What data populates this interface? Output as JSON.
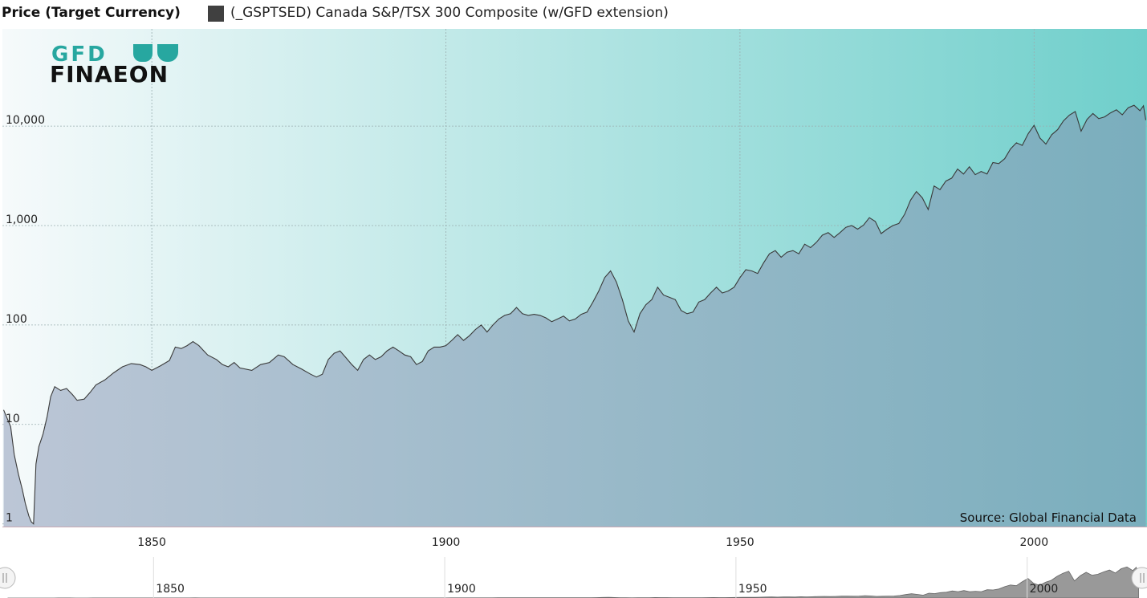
{
  "legend": {
    "title": "Price (Target Currency)",
    "series_name": "(_GSPTSED) Canada S&P/TSX 300 Composite (w/GFD extension)",
    "series_color": "#404040"
  },
  "logo": {
    "line1": "GFD",
    "line2": "FINAEON",
    "accent_color": "#27a7a0",
    "text_color": "#111111"
  },
  "source_label": "Source: Global Financial Data",
  "colors": {
    "plot_bg_left": "#f6fafb",
    "plot_bg_right": "#6fcfcb",
    "fill_left": "#bcc6d6",
    "fill_right": "#7aaebd",
    "line": "#3a3a3a"
  },
  "chart_data": {
    "type": "area",
    "title": "",
    "xlabel": "",
    "ylabel": "",
    "y_scale": "log",
    "y_ticks": [
      {
        "value": 1,
        "label": "1"
      },
      {
        "value": 10,
        "label": "10"
      },
      {
        "value": 100,
        "label": "100"
      },
      {
        "value": 1000,
        "label": "1,000"
      },
      {
        "value": 10000,
        "label": "10,000"
      }
    ],
    "x_ticks": [
      {
        "value": 1850,
        "label": "1850"
      },
      {
        "value": 1900,
        "label": "1900"
      },
      {
        "value": 1950,
        "label": "1950"
      },
      {
        "value": 2000,
        "label": "2000"
      }
    ],
    "xlim": [
      1824.6,
      2019.2
    ],
    "ylim": [
      0.94,
      95000
    ],
    "grid": true,
    "legend_position": "top-left",
    "series": [
      {
        "name": "(_GSPTSED) Canada S&P/TSX 300 Composite (w/GFD extension)",
        "points": [
          [
            1824.8,
            14
          ],
          [
            1826.0,
            9.5
          ],
          [
            1826.6,
            5
          ],
          [
            1827.3,
            3.2
          ],
          [
            1828.0,
            2.2
          ],
          [
            1828.5,
            1.6
          ],
          [
            1829.1,
            1.2
          ],
          [
            1829.5,
            1.05
          ],
          [
            1829.9,
            1.0
          ],
          [
            1830.3,
            4
          ],
          [
            1830.8,
            6
          ],
          [
            1831.5,
            8
          ],
          [
            1832.2,
            12
          ],
          [
            1832.8,
            19
          ],
          [
            1833.5,
            24
          ],
          [
            1834.5,
            22
          ],
          [
            1835.5,
            23
          ],
          [
            1836.5,
            20
          ],
          [
            1837.3,
            17.5
          ],
          [
            1838.5,
            18
          ],
          [
            1839.5,
            21
          ],
          [
            1840.5,
            25
          ],
          [
            1842,
            28
          ],
          [
            1843.5,
            33
          ],
          [
            1845,
            38
          ],
          [
            1846.5,
            41
          ],
          [
            1848,
            40
          ],
          [
            1849,
            38
          ],
          [
            1850,
            35
          ],
          [
            1851.5,
            39
          ],
          [
            1853,
            44
          ],
          [
            1854,
            60
          ],
          [
            1855,
            58
          ],
          [
            1856,
            62
          ],
          [
            1857,
            68
          ],
          [
            1858,
            62
          ],
          [
            1859.5,
            50
          ],
          [
            1861,
            45
          ],
          [
            1862,
            40
          ],
          [
            1863,
            38
          ],
          [
            1864,
            42
          ],
          [
            1865,
            37
          ],
          [
            1867,
            35
          ],
          [
            1868.5,
            40
          ],
          [
            1870,
            42
          ],
          [
            1871.5,
            50
          ],
          [
            1872.5,
            48
          ],
          [
            1874,
            40
          ],
          [
            1875.5,
            36
          ],
          [
            1877,
            32
          ],
          [
            1878,
            30
          ],
          [
            1879,
            32
          ],
          [
            1880,
            45
          ],
          [
            1881,
            52
          ],
          [
            1882,
            55
          ],
          [
            1883,
            47
          ],
          [
            1884,
            40
          ],
          [
            1885,
            35
          ],
          [
            1886,
            45
          ],
          [
            1887,
            50
          ],
          [
            1888,
            45
          ],
          [
            1889,
            48
          ],
          [
            1890,
            55
          ],
          [
            1891,
            60
          ],
          [
            1892,
            55
          ],
          [
            1893,
            50
          ],
          [
            1894,
            48
          ],
          [
            1895,
            40
          ],
          [
            1896,
            43
          ],
          [
            1897,
            55
          ],
          [
            1898,
            60
          ],
          [
            1899,
            60
          ],
          [
            1900,
            62
          ],
          [
            1901,
            70
          ],
          [
            1902,
            80
          ],
          [
            1903,
            70
          ],
          [
            1904,
            78
          ],
          [
            1905,
            90
          ],
          [
            1906,
            100
          ],
          [
            1907,
            85
          ],
          [
            1908,
            100
          ],
          [
            1909,
            115
          ],
          [
            1910,
            125
          ],
          [
            1911,
            130
          ],
          [
            1912,
            150
          ],
          [
            1913,
            130
          ],
          [
            1914,
            125
          ],
          [
            1915,
            128
          ],
          [
            1916,
            125
          ],
          [
            1917,
            118
          ],
          [
            1918,
            108
          ],
          [
            1919,
            115
          ],
          [
            1920,
            123
          ],
          [
            1921,
            110
          ],
          [
            1922,
            115
          ],
          [
            1923,
            128
          ],
          [
            1924,
            135
          ],
          [
            1925,
            170
          ],
          [
            1926,
            220
          ],
          [
            1927,
            300
          ],
          [
            1928,
            350
          ],
          [
            1929,
            270
          ],
          [
            1930,
            180
          ],
          [
            1931,
            110
          ],
          [
            1932,
            85
          ],
          [
            1933,
            130
          ],
          [
            1934,
            160
          ],
          [
            1935,
            180
          ],
          [
            1936,
            240
          ],
          [
            1937,
            200
          ],
          [
            1938,
            190
          ],
          [
            1939,
            180
          ],
          [
            1940,
            140
          ],
          [
            1941,
            130
          ],
          [
            1942,
            135
          ],
          [
            1943,
            170
          ],
          [
            1944,
            180
          ],
          [
            1945,
            210
          ],
          [
            1946,
            240
          ],
          [
            1947,
            210
          ],
          [
            1948,
            220
          ],
          [
            1949,
            240
          ],
          [
            1950,
            300
          ],
          [
            1951,
            360
          ],
          [
            1952,
            350
          ],
          [
            1953,
            330
          ],
          [
            1954,
            420
          ],
          [
            1955,
            520
          ],
          [
            1956,
            560
          ],
          [
            1957,
            480
          ],
          [
            1958,
            540
          ],
          [
            1959,
            560
          ],
          [
            1960,
            520
          ],
          [
            1961,
            650
          ],
          [
            1962,
            600
          ],
          [
            1963,
            680
          ],
          [
            1964,
            800
          ],
          [
            1965,
            850
          ],
          [
            1966,
            760
          ],
          [
            1967,
            850
          ],
          [
            1968,
            960
          ],
          [
            1969,
            1000
          ],
          [
            1970,
            920
          ],
          [
            1971,
            1010
          ],
          [
            1972,
            1200
          ],
          [
            1973,
            1100
          ],
          [
            1974,
            830
          ],
          [
            1975,
            920
          ],
          [
            1976,
            1000
          ],
          [
            1977,
            1050
          ],
          [
            1978,
            1300
          ],
          [
            1979,
            1800
          ],
          [
            1980,
            2200
          ],
          [
            1981,
            1900
          ],
          [
            1982,
            1450
          ],
          [
            1983,
            2500
          ],
          [
            1984,
            2300
          ],
          [
            1985,
            2800
          ],
          [
            1986,
            3000
          ],
          [
            1987,
            3700
          ],
          [
            1988,
            3300
          ],
          [
            1989,
            3900
          ],
          [
            1990,
            3250
          ],
          [
            1991,
            3500
          ],
          [
            1992,
            3300
          ],
          [
            1993,
            4300
          ],
          [
            1994,
            4200
          ],
          [
            1995,
            4700
          ],
          [
            1996,
            5900
          ],
          [
            1997,
            6800
          ],
          [
            1998,
            6400
          ],
          [
            1999,
            8400
          ],
          [
            2000,
            10200
          ],
          [
            2001,
            7600
          ],
          [
            2002,
            6600
          ],
          [
            2003,
            8200
          ],
          [
            2004,
            9200
          ],
          [
            2005,
            11300
          ],
          [
            2006,
            12900
          ],
          [
            2007,
            14000
          ],
          [
            2008,
            8900
          ],
          [
            2009,
            11700
          ],
          [
            2010,
            13400
          ],
          [
            2011,
            11900
          ],
          [
            2012,
            12400
          ],
          [
            2013,
            13600
          ],
          [
            2014,
            14600
          ],
          [
            2015,
            13000
          ],
          [
            2016,
            15300
          ],
          [
            2017,
            16200
          ],
          [
            2018,
            14300
          ],
          [
            2018.6,
            16000
          ],
          [
            2019.0,
            11500
          ]
        ]
      }
    ]
  },
  "navigator": {
    "x_ticks": [
      {
        "value": 1850,
        "label": "1850"
      },
      {
        "value": 1900,
        "label": "1900"
      },
      {
        "value": 1950,
        "label": "1950"
      },
      {
        "value": 2000,
        "label": "2000"
      }
    ]
  }
}
